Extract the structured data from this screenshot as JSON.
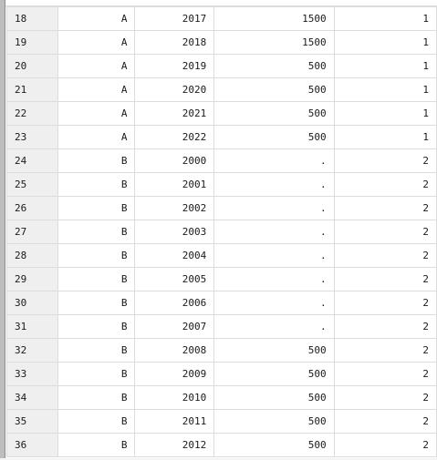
{
  "rows": [
    {
      "n": "18",
      "cat": "A",
      "year": "2017",
      "value": "1500",
      "group": "1"
    },
    {
      "n": "19",
      "cat": "A",
      "year": "2018",
      "value": "1500",
      "group": "1"
    },
    {
      "n": "20",
      "cat": "A",
      "year": "2019",
      "value": "500",
      "group": "1"
    },
    {
      "n": "21",
      "cat": "A",
      "year": "2020",
      "value": "500",
      "group": "1"
    },
    {
      "n": "22",
      "cat": "A",
      "year": "2021",
      "value": "500",
      "group": "1"
    },
    {
      "n": "23",
      "cat": "A",
      "year": "2022",
      "value": "500",
      "group": "1"
    },
    {
      "n": "24",
      "cat": "B",
      "year": "2000",
      "value": ".",
      "group": "2"
    },
    {
      "n": "25",
      "cat": "B",
      "year": "2001",
      "value": ".",
      "group": "2"
    },
    {
      "n": "26",
      "cat": "B",
      "year": "2002",
      "value": ".",
      "group": "2"
    },
    {
      "n": "27",
      "cat": "B",
      "year": "2003",
      "value": ".",
      "group": "2"
    },
    {
      "n": "28",
      "cat": "B",
      "year": "2004",
      "value": ".",
      "group": "2"
    },
    {
      "n": "29",
      "cat": "B",
      "year": "2005",
      "value": ".",
      "group": "2"
    },
    {
      "n": "30",
      "cat": "B",
      "year": "2006",
      "value": ".",
      "group": "2"
    },
    {
      "n": "31",
      "cat": "B",
      "year": "2007",
      "value": ".",
      "group": "2"
    },
    {
      "n": "32",
      "cat": "B",
      "year": "2008",
      "value": "500",
      "group": "2"
    },
    {
      "n": "33",
      "cat": "B",
      "year": "2009",
      "value": "500",
      "group": "2"
    },
    {
      "n": "34",
      "cat": "B",
      "year": "2010",
      "value": "500",
      "group": "2"
    },
    {
      "n": "35",
      "cat": "B",
      "year": "2011",
      "value": "500",
      "group": "2"
    },
    {
      "n": "36",
      "cat": "B",
      "year": "2012",
      "value": "500",
      "group": "2"
    }
  ],
  "colors": {
    "string_text": "#b31d1d",
    "numeric_text": "#1a1a1a",
    "row_header_bg": "#efefef",
    "grid_line": "#dcdcdc"
  }
}
